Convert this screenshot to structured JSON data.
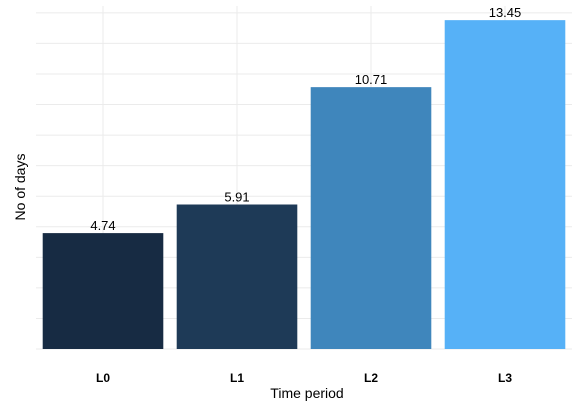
{
  "chart_data": {
    "type": "bar",
    "categories": [
      "L0",
      "L1",
      "L2",
      "L3"
    ],
    "values": [
      4.74,
      5.91,
      10.71,
      13.45
    ],
    "data_labels": [
      "4.74",
      "5.91",
      "10.71",
      "13.45"
    ],
    "colors": [
      "#172b43",
      "#1e3a57",
      "#3f86bc",
      "#56b1f7"
    ],
    "xlabel": "Time period",
    "ylabel": "No of days",
    "ylim": [
      0,
      14
    ],
    "grid": true,
    "y_tick_labels_shown": false
  }
}
